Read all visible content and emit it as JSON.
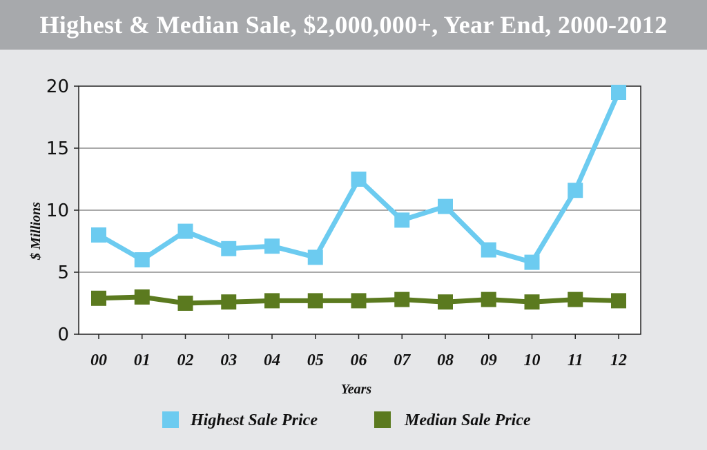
{
  "title": "Highest & Median Sale, $2,000,000+, Year End, 2000-2012",
  "chart_data": {
    "type": "line",
    "title": "Highest & Median Sale, $2,000,000+, Year End, 2000-2012",
    "xlabel": "Years",
    "ylabel": "$ Millions",
    "categories": [
      "00",
      "01",
      "02",
      "03",
      "04",
      "05",
      "06",
      "07",
      "08",
      "09",
      "10",
      "11",
      "12"
    ],
    "ylim": [
      0,
      20
    ],
    "yticks": [
      0,
      5,
      10,
      15,
      20
    ],
    "grid": "horizontal",
    "legend_position": "bottom",
    "series": [
      {
        "name": "Highest Sale Price",
        "color": "#6ccbf0",
        "marker": "square",
        "values": [
          8.0,
          6.0,
          8.3,
          6.9,
          7.1,
          6.2,
          12.5,
          9.2,
          10.3,
          6.8,
          5.8,
          11.6,
          19.5
        ]
      },
      {
        "name": "Median Sale Price",
        "color": "#5b7a1f",
        "marker": "square",
        "values": [
          2.9,
          3.0,
          2.5,
          2.6,
          2.7,
          2.7,
          2.7,
          2.8,
          2.6,
          2.8,
          2.6,
          2.8,
          2.7
        ]
      }
    ]
  }
}
